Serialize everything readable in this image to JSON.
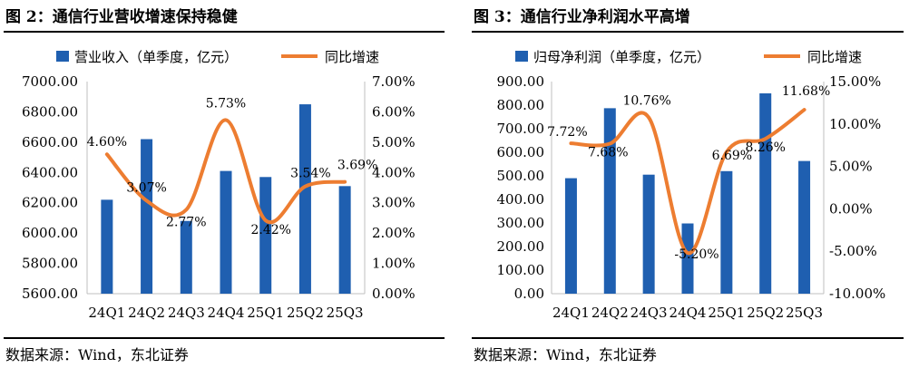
{
  "panels": [
    {
      "title": "图 2：通信行业营收增速保持稳健",
      "source": "数据来源：Wind，东北证券",
      "chart_data": {
        "type": "bar",
        "categories": [
          "24Q1",
          "24Q2",
          "24Q3",
          "24Q4",
          "25Q1",
          "25Q2",
          "25Q3"
        ],
        "series": [
          {
            "name": "营业收入（单季度，亿元）",
            "type": "bar",
            "axis": "left",
            "values": [
              6220,
              6620,
              6080,
              6410,
              6370,
              6850,
              6310
            ]
          },
          {
            "name": "同比增速",
            "type": "line",
            "axis": "right",
            "values": [
              4.6,
              3.07,
              2.77,
              5.73,
              2.42,
              3.54,
              3.69
            ],
            "labels": [
              "4.60%",
              "3.07%",
              "2.77%",
              "5.73%",
              "2.42%",
              "3.54%",
              "3.69%"
            ]
          }
        ],
        "ylim_left": [
          5600,
          7000
        ],
        "yticks_left": [
          "7000.00",
          "6800.00",
          "6600.00",
          "6400.00",
          "6200.00",
          "6000.00",
          "5800.00",
          "5600.00"
        ],
        "ylim_right": [
          0,
          7
        ],
        "yticks_right": [
          "7.00%",
          "6.00%",
          "5.00%",
          "4.00%",
          "3.00%",
          "2.00%",
          "1.00%",
          "0.00%"
        ],
        "legend": "top-center",
        "grid": false,
        "colors": {
          "bar": "#1f5fb0",
          "line": "#ed7d31"
        }
      }
    },
    {
      "title": "图 3：通信行业净利润水平高增",
      "source": "数据来源：Wind，东北证券",
      "chart_data": {
        "type": "bar",
        "categories": [
          "24Q1",
          "24Q2",
          "24Q3",
          "24Q4",
          "25Q1",
          "25Q2",
          "25Q3"
        ],
        "series": [
          {
            "name": "归母净利润（单季度，亿元）",
            "type": "bar",
            "axis": "left",
            "values": [
              490,
              787,
              505,
              298,
              520,
              850,
              563
            ]
          },
          {
            "name": "同比增速",
            "type": "line",
            "axis": "right",
            "values": [
              7.72,
              7.68,
              10.76,
              -5.2,
              6.69,
              8.26,
              11.68
            ],
            "labels": [
              "7.72%",
              "7.68%",
              "10.76%",
              "-5.20%",
              "6.69%",
              "8.26%",
              "11.68%"
            ]
          }
        ],
        "ylim_left": [
          0,
          900
        ],
        "yticks_left": [
          "900.00",
          "800.00",
          "700.00",
          "600.00",
          "500.00",
          "400.00",
          "300.00",
          "200.00",
          "100.00",
          "0.00"
        ],
        "ylim_right": [
          -10,
          15
        ],
        "yticks_right": [
          "15.00%",
          "10.00%",
          "5.00%",
          "0.00%",
          "-5.00%",
          "-10.00%"
        ],
        "legend": "top-center",
        "grid": false,
        "colors": {
          "bar": "#1f5fb0",
          "line": "#ed7d31"
        }
      }
    }
  ]
}
